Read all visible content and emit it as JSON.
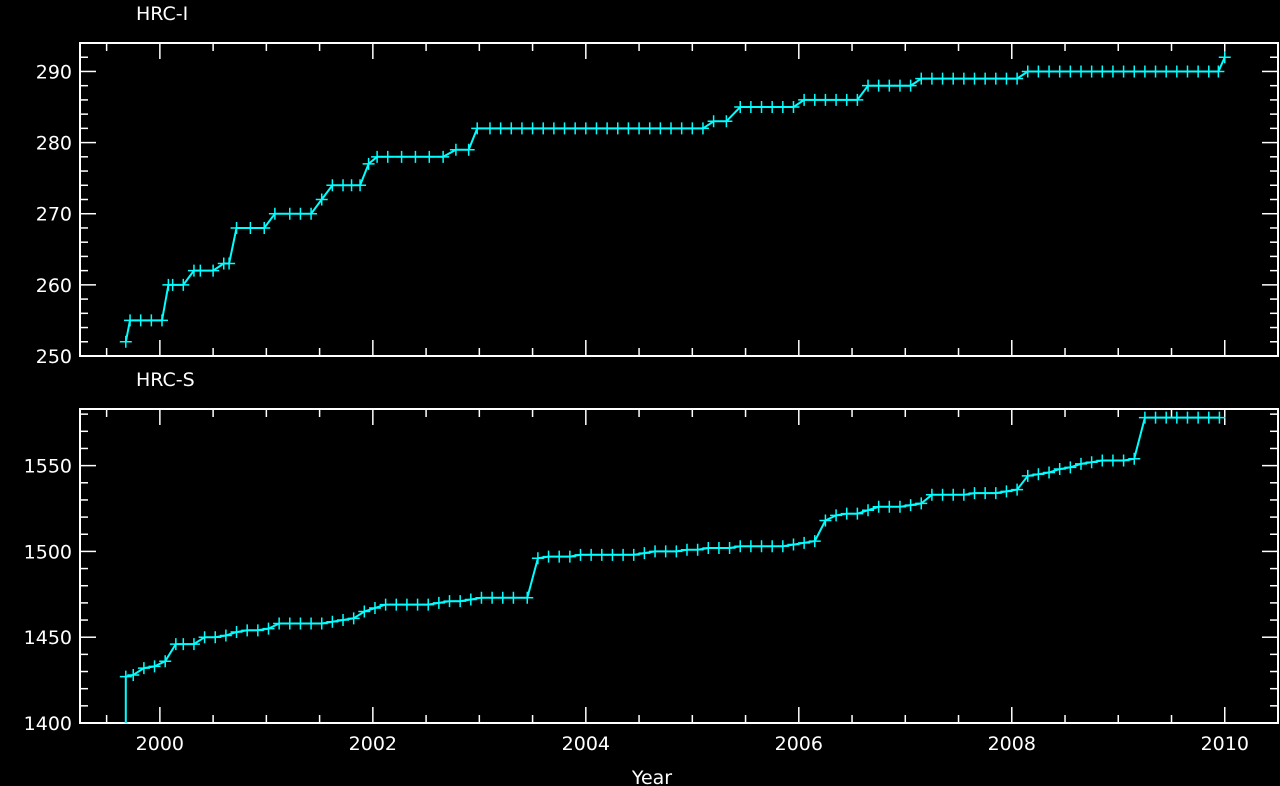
{
  "chart_data": [
    {
      "type": "line",
      "title": "HRC-I",
      "xlabel": "",
      "ylabel": "",
      "xlim": [
        1999.25,
        2010.5
      ],
      "ylim": [
        250,
        294
      ],
      "yticks": [
        "250",
        "260",
        "270",
        "280",
        "290"
      ],
      "grid": false,
      "line_color": "#00ffff",
      "marker": "plus",
      "x": [
        1999.68,
        1999.72,
        1999.82,
        1999.92,
        2000.02,
        2000.08,
        2000.12,
        2000.22,
        2000.32,
        2000.38,
        2000.5,
        2000.6,
        2000.65,
        2000.72,
        2000.85,
        2000.98,
        2001.08,
        2001.22,
        2001.32,
        2001.42,
        2001.52,
        2001.62,
        2001.72,
        2001.8,
        2001.88,
        2001.96,
        2002.04,
        2002.14,
        2002.27,
        2002.4,
        2002.53,
        2002.66,
        2002.78,
        2002.9,
        2002.98,
        2003.1,
        2003.2,
        2003.3,
        2003.4,
        2003.5,
        2003.6,
        2003.7,
        2003.8,
        2003.9,
        2004.0,
        2004.1,
        2004.2,
        2004.3,
        2004.4,
        2004.5,
        2004.6,
        2004.7,
        2004.8,
        2004.9,
        2005.0,
        2005.1,
        2005.2,
        2005.32,
        2005.45,
        2005.55,
        2005.65,
        2005.75,
        2005.85,
        2005.95,
        2006.05,
        2006.15,
        2006.25,
        2006.35,
        2006.45,
        2006.55,
        2006.65,
        2006.75,
        2006.85,
        2006.95,
        2007.05,
        2007.15,
        2007.25,
        2007.35,
        2007.45,
        2007.55,
        2007.65,
        2007.75,
        2007.85,
        2007.95,
        2008.05,
        2008.15,
        2008.25,
        2008.35,
        2008.45,
        2008.55,
        2008.65,
        2008.75,
        2008.85,
        2008.95,
        2009.05,
        2009.15,
        2009.25,
        2009.35,
        2009.45,
        2009.55,
        2009.65,
        2009.75,
        2009.85,
        2009.94,
        2010.0
      ],
      "y": [
        252,
        255,
        255,
        255,
        255,
        260,
        260,
        260,
        262,
        262,
        262,
        263,
        263,
        268,
        268,
        268,
        270,
        270,
        270,
        270,
        272,
        274,
        274,
        274,
        274,
        277,
        278,
        278,
        278,
        278,
        278,
        278,
        279,
        279,
        282,
        282,
        282,
        282,
        282,
        282,
        282,
        282,
        282,
        282,
        282,
        282,
        282,
        282,
        282,
        282,
        282,
        282,
        282,
        282,
        282,
        282,
        283,
        283,
        285,
        285,
        285,
        285,
        285,
        285,
        286,
        286,
        286,
        286,
        286,
        286,
        288,
        288,
        288,
        288,
        288,
        289,
        289,
        289,
        289,
        289,
        289,
        289,
        289,
        289,
        289,
        290,
        290,
        290,
        290,
        290,
        290,
        290,
        290,
        290,
        290,
        290,
        290,
        290,
        290,
        290,
        290,
        290,
        290,
        290,
        292
      ]
    },
    {
      "type": "line",
      "title": "HRC-S",
      "xlabel": "Year",
      "ylabel": "",
      "xlim": [
        1999.25,
        2010.5
      ],
      "ylim": [
        1400,
        1583
      ],
      "xticks": [
        "2000",
        "2002",
        "2004",
        "2006",
        "2008",
        "2010"
      ],
      "yticks": [
        "1400",
        "1450",
        "1500",
        "1550"
      ],
      "grid": false,
      "line_color": "#00ffff",
      "marker": "plus",
      "initial_drop": true,
      "x": [
        1999.68,
        1999.75,
        1999.85,
        1999.95,
        2000.05,
        2000.15,
        2000.22,
        2000.32,
        2000.42,
        2000.52,
        2000.62,
        2000.72,
        2000.82,
        2000.92,
        2001.02,
        2001.12,
        2001.22,
        2001.32,
        2001.42,
        2001.52,
        2001.62,
        2001.72,
        2001.82,
        2001.92,
        2002.02,
        2002.12,
        2002.22,
        2002.32,
        2002.42,
        2002.52,
        2002.62,
        2002.72,
        2002.82,
        2002.92,
        2003.02,
        2003.12,
        2003.22,
        2003.32,
        2003.45,
        2003.55,
        2003.65,
        2003.75,
        2003.85,
        2003.95,
        2004.05,
        2004.15,
        2004.25,
        2004.35,
        2004.45,
        2004.55,
        2004.65,
        2004.75,
        2004.85,
        2004.95,
        2005.05,
        2005.15,
        2005.25,
        2005.35,
        2005.45,
        2005.55,
        2005.65,
        2005.75,
        2005.85,
        2005.95,
        2006.05,
        2006.15,
        2006.25,
        2006.35,
        2006.45,
        2006.55,
        2006.65,
        2006.75,
        2006.85,
        2006.95,
        2007.05,
        2007.15,
        2007.25,
        2007.35,
        2007.45,
        2007.55,
        2007.65,
        2007.75,
        2007.85,
        2007.95,
        2008.05,
        2008.15,
        2008.25,
        2008.35,
        2008.45,
        2008.55,
        2008.65,
        2008.75,
        2008.85,
        2008.95,
        2009.05,
        2009.15,
        2009.25,
        2009.35,
        2009.45,
        2009.55,
        2009.65,
        2009.75,
        2009.85,
        2009.95
      ],
      "y": [
        1427,
        1428,
        1432,
        1433,
        1436,
        1446,
        1446,
        1446,
        1450,
        1450,
        1451,
        1453,
        1454,
        1454,
        1455,
        1458,
        1458,
        1458,
        1458,
        1458,
        1459,
        1460,
        1461,
        1465,
        1467,
        1469,
        1469,
        1469,
        1469,
        1469,
        1470,
        1471,
        1471,
        1472,
        1473,
        1473,
        1473,
        1473,
        1473,
        1496,
        1497,
        1497,
        1497,
        1498,
        1498,
        1498,
        1498,
        1498,
        1498,
        1499,
        1500,
        1500,
        1500,
        1501,
        1501,
        1502,
        1502,
        1502,
        1503,
        1503,
        1503,
        1503,
        1503,
        1504,
        1505,
        1506,
        1518,
        1521,
        1522,
        1522,
        1524,
        1526,
        1526,
        1526,
        1527,
        1528,
        1533,
        1533,
        1533,
        1533,
        1534,
        1534,
        1534,
        1535,
        1536,
        1544,
        1545,
        1546,
        1548,
        1549,
        1551,
        1552,
        1553,
        1553,
        1553,
        1554,
        1578,
        1578,
        1578,
        1578,
        1578,
        1578,
        1578,
        1578
      ]
    }
  ]
}
